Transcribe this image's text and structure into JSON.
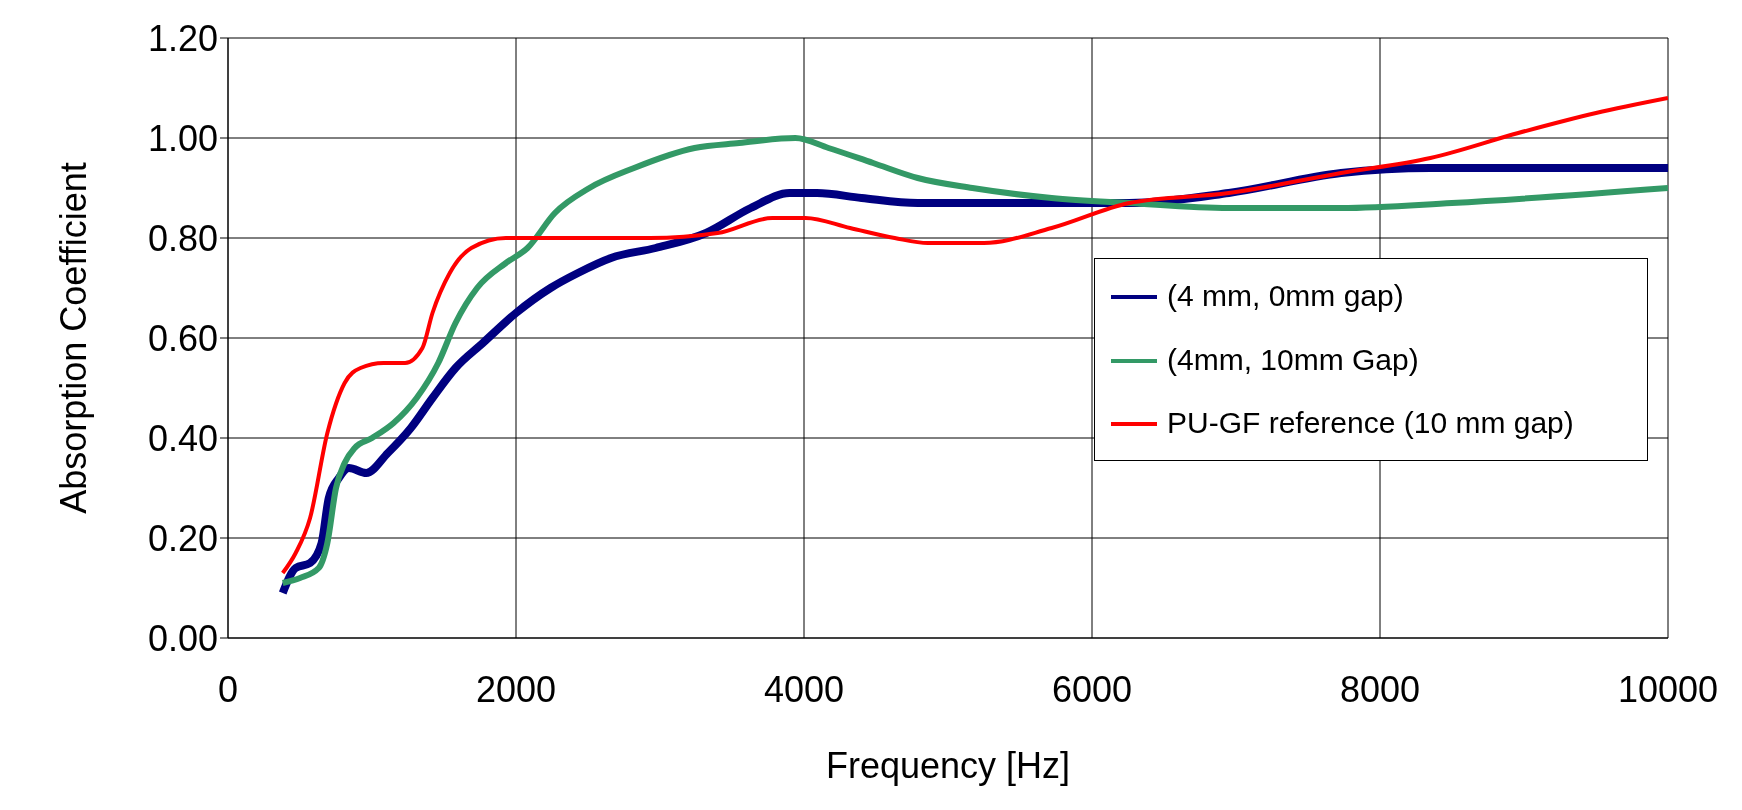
{
  "chart_data": {
    "type": "line",
    "xlabel": "Frequency [Hz]",
    "ylabel": "Absorption Coefficient",
    "xlim": [
      0,
      10000
    ],
    "xticks": [
      0,
      2000,
      4000,
      6000,
      8000,
      10000
    ],
    "ylim": [
      0,
      1.2
    ],
    "yticks": [
      {
        "value": 0,
        "label": "0.00"
      },
      {
        "value": 0.2,
        "label": "0.20"
      },
      {
        "value": 0.4,
        "label": "0.40"
      },
      {
        "value": 0.6,
        "label": "0.60"
      },
      {
        "value": 0.8,
        "label": "0.80"
      },
      {
        "value": 1,
        "label": "1.00"
      },
      {
        "value": 1.2,
        "label": "1.20"
      }
    ],
    "grid": true,
    "legend": "right",
    "marker": "none",
    "line_style": "solid",
    "series": [
      {
        "name": "(4 mm, 0mm gap)",
        "color": "#000080",
        "x": [
          380,
          470,
          570,
          650,
          700,
          770,
          840,
          960,
          1110,
          1270,
          1420,
          1580,
          1770,
          2000,
          2240,
          2430,
          2660,
          2970,
          3320,
          3630,
          3900,
          4090,
          4400,
          4790,
          5170,
          5720,
          6260,
          6950,
          7730,
          8350,
          8960,
          10000
        ],
        "values": [
          0.09,
          0.14,
          0.15,
          0.19,
          0.28,
          0.32,
          0.34,
          0.33,
          0.37,
          0.42,
          0.48,
          0.54,
          0.59,
          0.65,
          0.7,
          0.73,
          0.76,
          0.78,
          0.81,
          0.86,
          0.89,
          0.89,
          0.88,
          0.87,
          0.87,
          0.87,
          0.87,
          0.89,
          0.93,
          0.94,
          0.94,
          0.94
        ]
      },
      {
        "name": "(4mm, 10mm Gap)",
        "color": "#339966",
        "x": [
          380,
          500,
          630,
          690,
          750,
          810,
          880,
          1000,
          1150,
          1310,
          1460,
          1580,
          1730,
          1930,
          2080,
          2270,
          2510,
          2820,
          3240,
          3550,
          3940,
          4170,
          4480,
          4790,
          5170,
          5720,
          6260,
          6950,
          7730,
          8500,
          10000
        ],
        "values": [
          0.11,
          0.12,
          0.14,
          0.19,
          0.3,
          0.35,
          0.38,
          0.4,
          0.43,
          0.48,
          0.55,
          0.63,
          0.7,
          0.75,
          0.78,
          0.85,
          0.9,
          0.94,
          0.98,
          0.99,
          1.0,
          0.98,
          0.95,
          0.92,
          0.9,
          0.88,
          0.87,
          0.86,
          0.86,
          0.87,
          0.9
        ]
      },
      {
        "name": "PU-GF reference (10 mm gap)",
        "color": "#ff0000",
        "x": [
          380,
          470,
          570,
          690,
          810,
          920,
          1080,
          1230,
          1350,
          1420,
          1540,
          1690,
          1930,
          2470,
          2930,
          3400,
          3780,
          4010,
          4320,
          4630,
          4860,
          5250,
          5720,
          6260,
          6950,
          7730,
          8350,
          8960,
          9500,
          10000
        ],
        "values": [
          0.13,
          0.17,
          0.24,
          0.41,
          0.51,
          0.54,
          0.55,
          0.55,
          0.58,
          0.65,
          0.73,
          0.78,
          0.8,
          0.8,
          0.8,
          0.81,
          0.84,
          0.84,
          0.82,
          0.8,
          0.79,
          0.79,
          0.82,
          0.87,
          0.89,
          0.93,
          0.96,
          1.01,
          1.05,
          1.08
        ]
      }
    ]
  }
}
